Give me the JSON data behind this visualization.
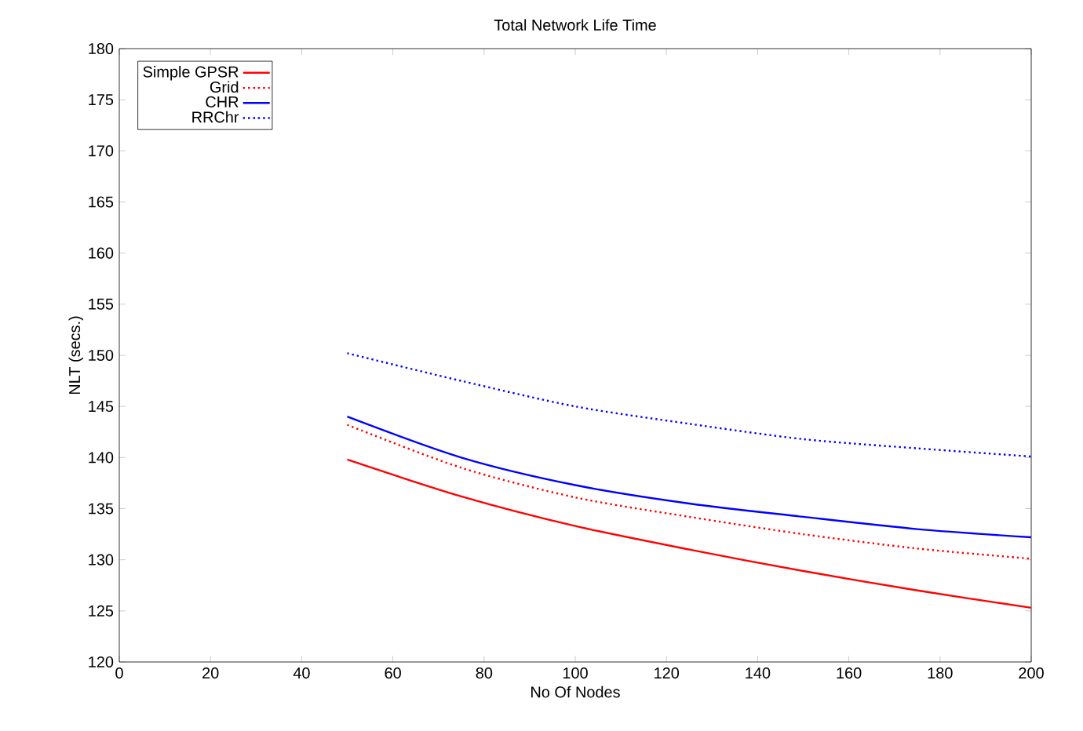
{
  "chart_data": {
    "type": "line",
    "title": "Total Network Life Time",
    "xlabel": "No Of Nodes",
    "ylabel": "NLT (secs.)",
    "x": [
      50,
      75,
      100,
      125,
      150,
      175,
      200
    ],
    "series": [
      {
        "name": "Simple GPSR",
        "color": "#ff0000",
        "line_style": "solid",
        "values": [
          139.8,
          136.2,
          133.3,
          131.0,
          128.9,
          127.0,
          125.3
        ]
      },
      {
        "name": "Grid",
        "color": "#ff0000",
        "line_style": "dotted",
        "values": [
          143.2,
          139.0,
          136.1,
          134.2,
          132.5,
          131.1,
          130.1
        ]
      },
      {
        "name": "CHR",
        "color": "#0000ff",
        "line_style": "solid",
        "values": [
          144.0,
          140.0,
          137.3,
          135.5,
          134.2,
          133.0,
          132.2
        ]
      },
      {
        "name": "RRChr",
        "color": "#0000ff",
        "line_style": "dotted",
        "values": [
          150.2,
          147.5,
          145.0,
          143.3,
          141.8,
          140.9,
          140.1
        ]
      }
    ],
    "xlim": [
      0,
      200
    ],
    "ylim": [
      120,
      180
    ],
    "xticks": [
      0,
      20,
      40,
      60,
      80,
      100,
      120,
      140,
      160,
      180,
      200
    ],
    "yticks": [
      120,
      125,
      130,
      135,
      140,
      145,
      150,
      155,
      160,
      165,
      170,
      175,
      180
    ],
    "legend": "top left",
    "grid": false,
    "marker": "none"
  }
}
